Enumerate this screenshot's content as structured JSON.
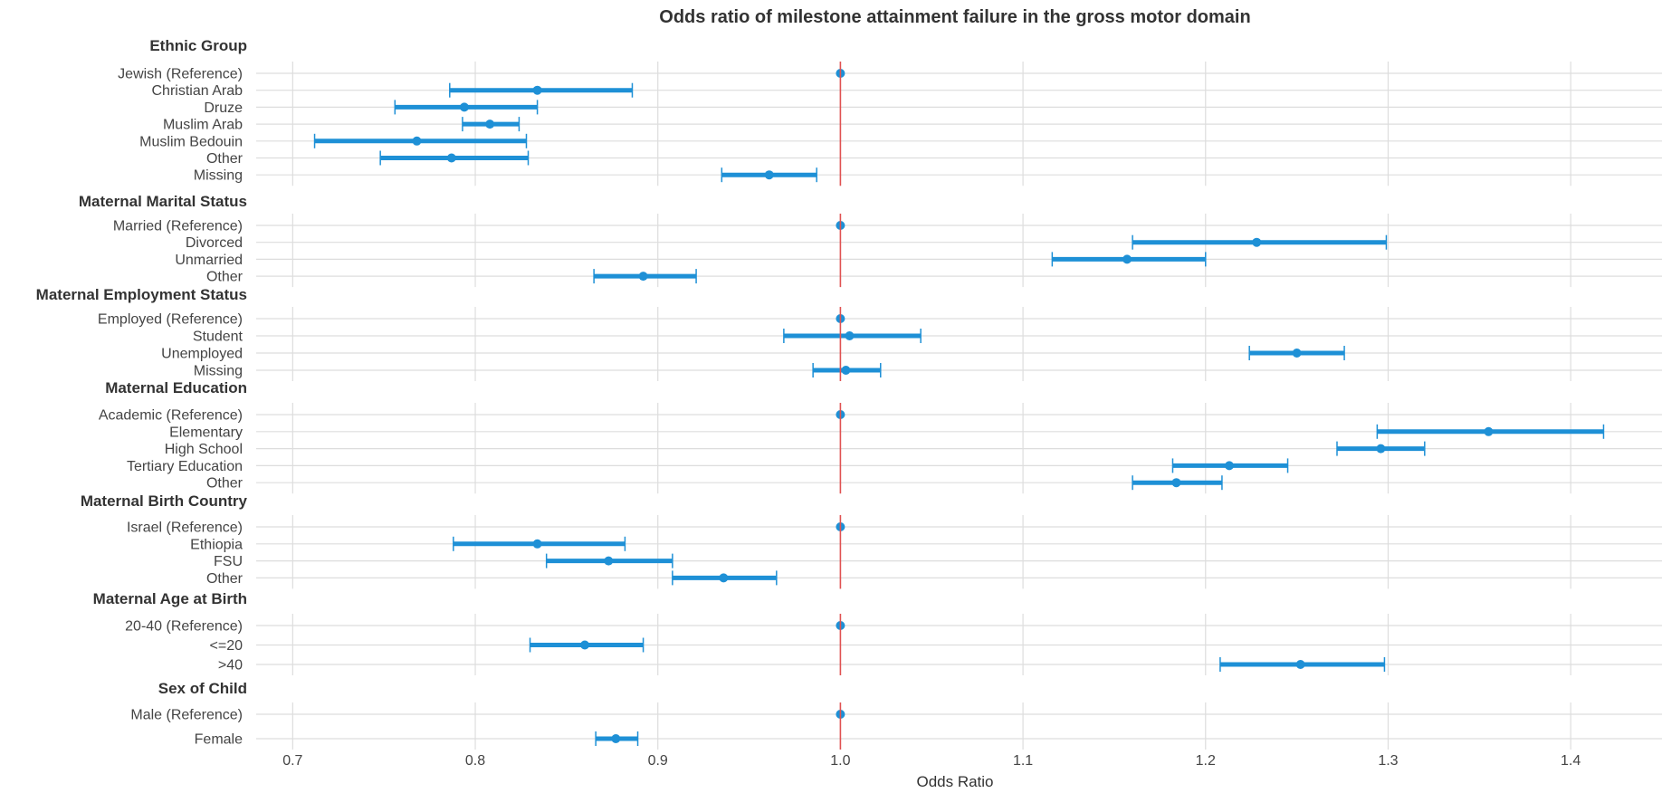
{
  "chart_data": {
    "type": "forest",
    "title": "Odds ratio of milestone attainment failure in the gross motor domain",
    "xlabel": "Odds Ratio",
    "xlim": [
      0.68,
      1.45
    ],
    "xticks": [
      0.7,
      0.8,
      0.9,
      1.0,
      1.1,
      1.2,
      1.3,
      1.4
    ],
    "xtick_labels": [
      "0.7",
      "0.8",
      "0.9",
      "1.0",
      "1.1",
      "1.2",
      "1.3",
      "1.4"
    ],
    "reference_line": 1.0,
    "grid": true,
    "colors": {
      "series": "#1e90d6",
      "reference": "#e05252",
      "grid": "#dddddd"
    },
    "groups": [
      {
        "name": "Ethnic Group",
        "items": [
          {
            "label": "Jewish (Reference)",
            "or": 1.0,
            "lo": 1.0,
            "hi": 1.0
          },
          {
            "label": "Christian Arab",
            "or": 0.834,
            "lo": 0.786,
            "hi": 0.886
          },
          {
            "label": "Druze",
            "or": 0.794,
            "lo": 0.756,
            "hi": 0.834
          },
          {
            "label": "Muslim Arab",
            "or": 0.808,
            "lo": 0.793,
            "hi": 0.824
          },
          {
            "label": "Muslim Bedouin",
            "or": 0.768,
            "lo": 0.712,
            "hi": 0.828
          },
          {
            "label": "Other",
            "or": 0.787,
            "lo": 0.748,
            "hi": 0.829
          },
          {
            "label": "Missing",
            "or": 0.961,
            "lo": 0.935,
            "hi": 0.987
          }
        ]
      },
      {
        "name": "Maternal Marital Status",
        "items": [
          {
            "label": "Married (Reference)",
            "or": 1.0,
            "lo": 1.0,
            "hi": 1.0
          },
          {
            "label": "Divorced",
            "or": 1.228,
            "lo": 1.16,
            "hi": 1.299
          },
          {
            "label": "Unmarried",
            "or": 1.157,
            "lo": 1.116,
            "hi": 1.2
          },
          {
            "label": "Other",
            "or": 0.892,
            "lo": 0.865,
            "hi": 0.921
          }
        ]
      },
      {
        "name": "Maternal Employment Status",
        "items": [
          {
            "label": "Employed (Reference)",
            "or": 1.0,
            "lo": 1.0,
            "hi": 1.0
          },
          {
            "label": "Student",
            "or": 1.005,
            "lo": 0.969,
            "hi": 1.044
          },
          {
            "label": "Unemployed",
            "or": 1.25,
            "lo": 1.224,
            "hi": 1.276
          },
          {
            "label": "Missing",
            "or": 1.003,
            "lo": 0.985,
            "hi": 1.022
          }
        ]
      },
      {
        "name": "Maternal Education",
        "items": [
          {
            "label": "Academic (Reference)",
            "or": 1.0,
            "lo": 1.0,
            "hi": 1.0
          },
          {
            "label": "Elementary",
            "or": 1.355,
            "lo": 1.294,
            "hi": 1.418
          },
          {
            "label": "High School",
            "or": 1.296,
            "lo": 1.272,
            "hi": 1.32
          },
          {
            "label": "Tertiary Education",
            "or": 1.213,
            "lo": 1.182,
            "hi": 1.245
          },
          {
            "label": "Other",
            "or": 1.184,
            "lo": 1.16,
            "hi": 1.209
          }
        ]
      },
      {
        "name": "Maternal Birth Country",
        "items": [
          {
            "label": "Israel (Reference)",
            "or": 1.0,
            "lo": 1.0,
            "hi": 1.0
          },
          {
            "label": "Ethiopia",
            "or": 0.834,
            "lo": 0.788,
            "hi": 0.882
          },
          {
            "label": "FSU",
            "or": 0.873,
            "lo": 0.839,
            "hi": 0.908
          },
          {
            "label": "Other",
            "or": 0.936,
            "lo": 0.908,
            "hi": 0.965
          }
        ]
      },
      {
        "name": "Maternal Age at Birth",
        "items": [
          {
            "label": "20-40 (Reference)",
            "or": 1.0,
            "lo": 1.0,
            "hi": 1.0
          },
          {
            "label": "<=20",
            "or": 0.86,
            "lo": 0.83,
            "hi": 0.892
          },
          {
            "label": ">40",
            "or": 1.252,
            "lo": 1.208,
            "hi": 1.298
          }
        ]
      },
      {
        "name": "Sex of Child",
        "items": [
          {
            "label": "Male (Reference)",
            "or": 1.0,
            "lo": 1.0,
            "hi": 1.0
          },
          {
            "label": "Female",
            "or": 0.877,
            "lo": 0.866,
            "hi": 0.889
          }
        ]
      }
    ]
  }
}
